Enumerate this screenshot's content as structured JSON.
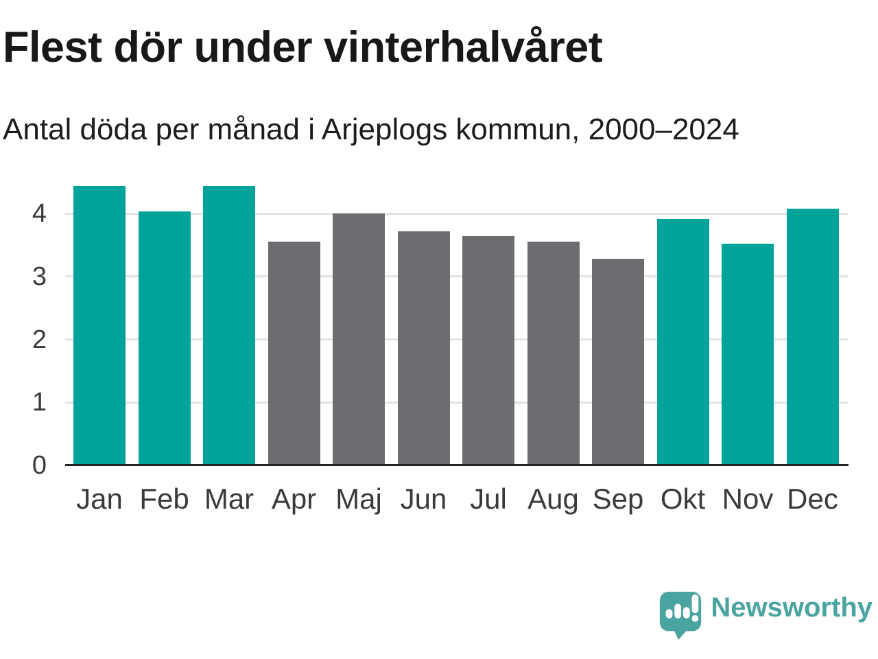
{
  "title": "Flest dör under vinterhalvåret",
  "subtitle": "Antal döda per månad i Arjeplogs kommun, 2000–2024",
  "chart_data": {
    "type": "bar",
    "title": "Flest dör under vinterhalvåret",
    "subtitle": "Antal döda per månad i Arjeplogs kommun, 2000–2024",
    "categories": [
      "Jan",
      "Feb",
      "Mar",
      "Apr",
      "Maj",
      "Jun",
      "Jul",
      "Aug",
      "Sep",
      "Okt",
      "Nov",
      "Dec"
    ],
    "values": [
      4.44,
      4.04,
      4.44,
      3.56,
      4.0,
      3.72,
      3.64,
      3.56,
      3.28,
      3.92,
      3.52,
      4.08
    ],
    "bar_seasons": [
      "winter",
      "winter",
      "winter",
      "summer",
      "summer",
      "summer",
      "summer",
      "summer",
      "summer",
      "winter",
      "winter",
      "winter"
    ],
    "colors": {
      "winter": "#00a39a",
      "summer": "#6d6d71"
    },
    "xlabel": "",
    "ylabel": "",
    "yticks": [
      0,
      1,
      2,
      3,
      4
    ],
    "ylim": [
      0,
      4.69
    ],
    "grid": true,
    "legend": "none"
  },
  "axis": {
    "text_color": "#3a3a3a",
    "gridline_color": "#e3e3e3",
    "baseline_color": "#242424"
  },
  "branding": {
    "logo_text": "Newsworthy",
    "logo_color": "#4aa49f",
    "logo_icon": "speech-bubble-bar-chart-icon"
  }
}
